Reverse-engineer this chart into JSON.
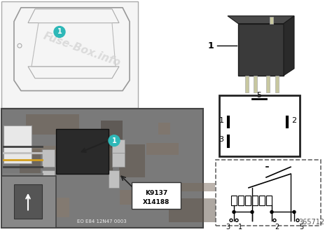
{
  "bg_color": "#f0f0f0",
  "title_text": "365712",
  "watermark": "Fuse-Box.info",
  "label1": "1",
  "label_k9137": "K9137",
  "label_x14188": "X14188",
  "label_eo": "EO E84 12N47 0003",
  "pin_labels": [
    "5",
    "1",
    "2",
    "3"
  ],
  "circuit_labels": [
    "3",
    "1",
    "2",
    "5"
  ],
  "car_outline_color": "#cccccc",
  "relay_photo_bg": "#888888",
  "diagram_bg": "#ffffff",
  "circuit_bg": "#f8f8f8",
  "teal_circle_color": "#2eb8b8",
  "arrow_color": "#333333",
  "text_color": "#333333",
  "white": "#ffffff",
  "black": "#000000",
  "gray_photo": "#aaaaaa"
}
